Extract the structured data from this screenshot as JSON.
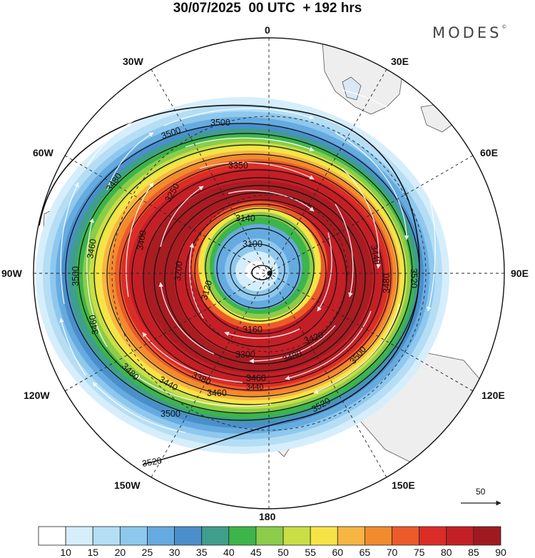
{
  "title": "30/07/2025  00 UTC  + 192 hrs",
  "brand": "MODES",
  "brand_mark": "©",
  "longitude_labels": {
    "lon_0": "0",
    "lon_30e": "30E",
    "lon_60e": "60E",
    "lon_90e": "90E",
    "lon_120e": "120E",
    "lon_150e": "150E",
    "lon_180": "180",
    "lon_150w": "150W",
    "lon_120w": "120W",
    "lon_90w": "90W",
    "lon_60w": "60W",
    "lon_30w": "30W"
  },
  "contour_labels": [
    "3500",
    "3500",
    "3480",
    "3460",
    "3500",
    "3460",
    "3480",
    "3440",
    "3460",
    "3500",
    "3520",
    "3520",
    "3520",
    "3480",
    "3500",
    "3480",
    "3460",
    "3440",
    "3300",
    "3160",
    "3140",
    "3100",
    "3120",
    "3200",
    "3250",
    "3440",
    "3420",
    "3400",
    "3380",
    "3350"
  ],
  "wind_scale": {
    "value": "50"
  },
  "colorbar": {
    "ticks": [
      "10",
      "15",
      "20",
      "25",
      "30",
      "35",
      "40",
      "45",
      "50",
      "55",
      "60",
      "65",
      "70",
      "75",
      "80",
      "85",
      "90"
    ],
    "colors": [
      "#ffffff",
      "#d6eefb",
      "#b5def5",
      "#8ec8ee",
      "#66abe0",
      "#4a8fcc",
      "#3f9e8c",
      "#3db54a",
      "#8ccc4a",
      "#c9df45",
      "#f6e447",
      "#f7b542",
      "#f28a2e",
      "#ec5a2a",
      "#dc2c28",
      "#c41f26",
      "#9e1a20"
    ]
  }
}
